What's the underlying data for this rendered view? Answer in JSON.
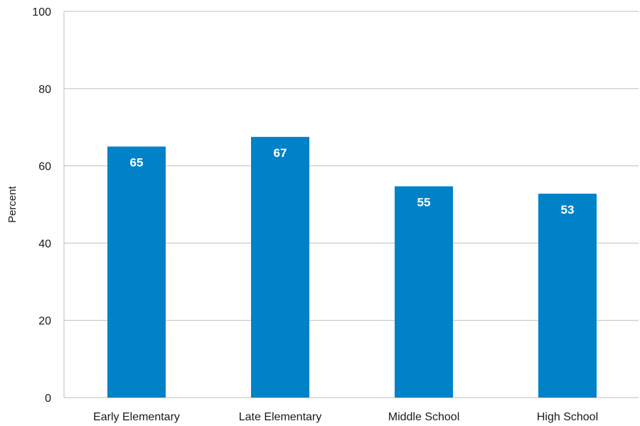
{
  "chart_data": {
    "type": "bar",
    "title": "",
    "xlabel": "",
    "ylabel": "Percent",
    "ylim": [
      0,
      100
    ],
    "yticks": [
      0,
      20,
      40,
      60,
      80,
      100
    ],
    "grid": true,
    "legend": "none",
    "categories": [
      "Early Elementary",
      "Late Elementary",
      "Middle School",
      "High School"
    ],
    "values": [
      65,
      67.5,
      54.7,
      52.8
    ],
    "data_labels": [
      "65",
      "67",
      "55",
      "53"
    ],
    "bar_color": "#0082c8",
    "grid_color": "#bdbdbd"
  }
}
